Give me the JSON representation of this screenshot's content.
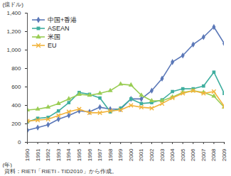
{
  "chart_data": {
    "type": "line",
    "ylabel": "(億ドル)",
    "xlabel": "(年)",
    "caption": "資料：RIETI「RIETI - TID2010」から作成。",
    "legend": "top-left",
    "grid": false,
    "x": [
      1990,
      1991,
      1992,
      1993,
      1994,
      1995,
      1996,
      1997,
      1998,
      1999,
      2000,
      2001,
      2002,
      2003,
      2004,
      2005,
      2006,
      2007,
      2008,
      2009
    ],
    "xlim": [
      1990,
      2009
    ],
    "xticks": [
      1990,
      1991,
      1992,
      1993,
      1994,
      1995,
      1996,
      1997,
      1998,
      1999,
      2000,
      2001,
      2002,
      2003,
      2004,
      2005,
      2006,
      2007,
      2008,
      2009
    ],
    "ylim": [
      0,
      1400
    ],
    "yticks": [
      0,
      200,
      400,
      600,
      800,
      {
        "value": 1000,
        "label": "1,000"
      },
      {
        "value": 1200,
        "label": "1,200"
      },
      {
        "value": 1400,
        "label": "1,400"
      }
    ],
    "series": [
      {
        "name": "中国+香港",
        "color": "#5b78b8",
        "marker": "diamond",
        "values": [
          130,
          160,
          190,
          250,
          290,
          340,
          330,
          380,
          360,
          360,
          470,
          470,
          560,
          690,
          870,
          940,
          1060,
          1140,
          1250,
          1070
        ]
      },
      {
        "name": "ASEAN",
        "color": "#3fae9f",
        "marker": "square",
        "values": [
          220,
          260,
          270,
          340,
          430,
          540,
          520,
          480,
          330,
          370,
          470,
          420,
          430,
          460,
          550,
          580,
          580,
          610,
          760,
          530
        ]
      },
      {
        "name": "米国",
        "color": "#9acd55",
        "marker": "triangle",
        "values": [
          350,
          360,
          380,
          420,
          470,
          520,
          510,
          530,
          560,
          630,
          620,
          510,
          450,
          450,
          490,
          540,
          560,
          540,
          500,
          380
        ]
      },
      {
        "name": "EU",
        "color": "#f2b43c",
        "marker": "times",
        "values": [
          230,
          240,
          250,
          290,
          330,
          360,
          320,
          320,
          340,
          350,
          400,
          380,
          370,
          420,
          480,
          530,
          560,
          530,
          550,
          390
        ]
      }
    ]
  }
}
